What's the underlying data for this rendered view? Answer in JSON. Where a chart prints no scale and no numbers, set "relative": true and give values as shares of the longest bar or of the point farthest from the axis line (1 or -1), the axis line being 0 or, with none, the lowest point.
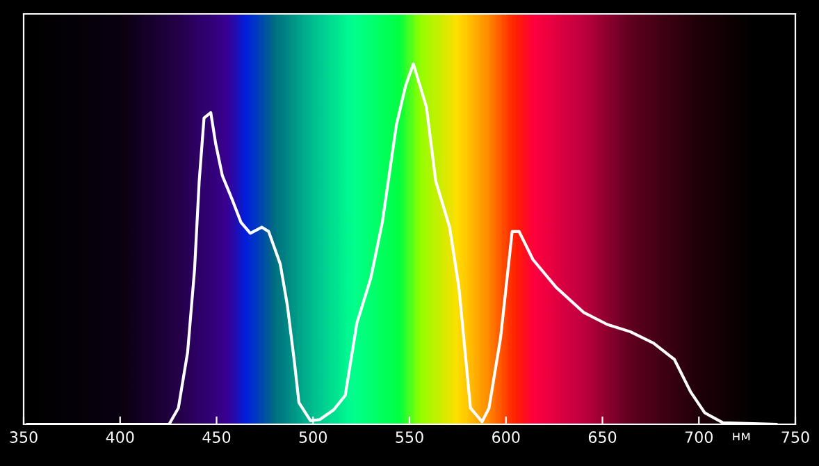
{
  "chart_data": {
    "type": "line",
    "relative": true,
    "xlabel": "нм",
    "xlim": [
      350,
      750
    ],
    "xticks": [
      350,
      400,
      450,
      500,
      550,
      600,
      650,
      700,
      750
    ],
    "grid": false,
    "legend": false,
    "marker": "none",
    "line_style": "solid",
    "series": [
      {
        "color": "#ffffff",
        "x": [
          352,
          425.4,
          430.2,
          435,
          438.6,
          441,
          443.5,
          447,
          449.5,
          453,
          458,
          462.7,
          467.5,
          473.5,
          477,
          483,
          486.7,
          490.3,
          492.7,
          498.7,
          503.5,
          510.7,
          516.7,
          522.7,
          529.9,
          535.9,
          543.2,
          548,
          552,
          558.8,
          563.6,
          570.8,
          575.6,
          581.6,
          587.6,
          591.2,
          597.2,
          603.2,
          606.8,
          614,
          626,
          640.4,
          652.5,
          664.4,
          676.5,
          687.3,
          695.7,
          703,
          712.5,
          740
        ],
        "values": [
          0,
          0,
          0.045,
          0.2,
          0.43,
          0.675,
          0.85,
          0.865,
          0.78,
          0.69,
          0.625,
          0.56,
          0.53,
          0.547,
          0.535,
          0.445,
          0.33,
          0.175,
          0.06,
          0.01,
          0.013,
          0.04,
          0.08,
          0.28,
          0.405,
          0.56,
          0.83,
          0.94,
          1,
          0.88,
          0.675,
          0.547,
          0.38,
          0.045,
          0.007,
          0.045,
          0.24,
          0.535,
          0.535,
          0.457,
          0.38,
          0.31,
          0.277,
          0.257,
          0.225,
          0.18,
          0.09,
          0.032,
          0.004,
          0
        ]
      }
    ]
  }
}
